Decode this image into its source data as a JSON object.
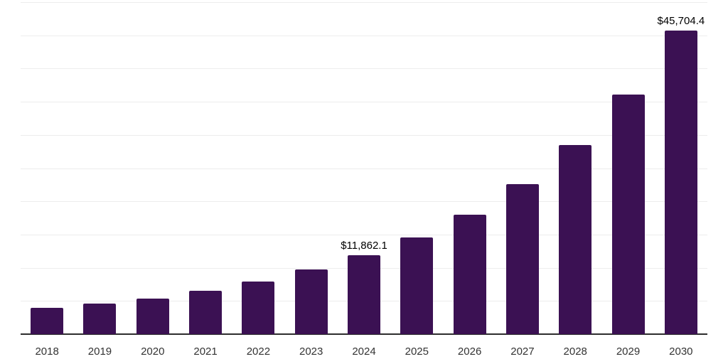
{
  "chart_data": {
    "type": "bar",
    "title": "",
    "xlabel": "",
    "ylabel": "",
    "categories": [
      "2018",
      "2019",
      "2020",
      "2021",
      "2022",
      "2023",
      "2024",
      "2025",
      "2026",
      "2027",
      "2028",
      "2029",
      "2030"
    ],
    "values": [
      3960,
      4600,
      5350,
      6530,
      7920,
      9740,
      11862.1,
      14560,
      17990,
      22590,
      28480,
      36080,
      45704.4
    ],
    "data_labels": {
      "2024": "$11,862.1",
      "2030": "$45,704.4"
    },
    "ylim": [
      0,
      50000
    ],
    "gridline_step": 5000,
    "grid": "horizontal-only",
    "legend": "none",
    "y_axis_tick_labels": "none",
    "colors": {
      "bar": "#3b1153",
      "axis_line": "#2d2d2d",
      "gridline": "#ededed",
      "tick_label": "#333333",
      "data_label": "#000000",
      "background": "#ffffff"
    }
  }
}
